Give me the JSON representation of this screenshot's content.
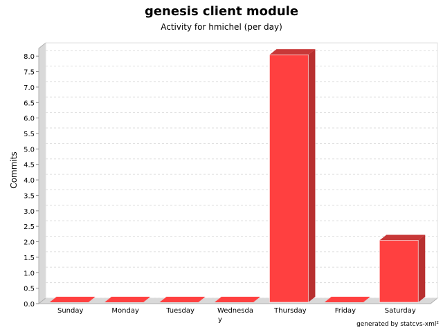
{
  "page": {
    "title": "genesis client module",
    "subtitle": "Activity for hmichel (per day)",
    "footer": "generated by statcvs-xml²"
  },
  "colors": {
    "bar_front": "#ff4040",
    "bar_top": "#c83838",
    "bar_side": "#b83030",
    "wall": "#d9d9d9",
    "grid": "#dddddd"
  },
  "chart_data": {
    "type": "bar",
    "title": "genesis client module",
    "subtitle": "Activity for hmichel (per day)",
    "xlabel": "",
    "ylabel": "Commits",
    "categories": [
      "Sunday",
      "Monday",
      "Tuesday",
      "Wednesday",
      "Thursday",
      "Friday",
      "Saturday"
    ],
    "values": [
      0,
      0,
      0,
      0,
      8,
      0,
      2
    ],
    "ylim": [
      0,
      8.25
    ],
    "yticks": [
      0.0,
      0.5,
      1.0,
      1.5,
      2.0,
      2.5,
      3.0,
      3.5,
      4.0,
      4.5,
      5.0,
      5.5,
      6.0,
      6.5,
      7.0,
      7.5,
      8.0
    ],
    "grid": true,
    "legend": "none"
  }
}
